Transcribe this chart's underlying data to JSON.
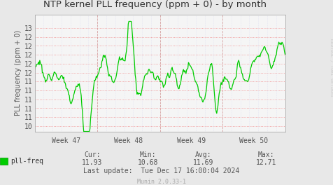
{
  "title": "NTP kernel PLL frequency (ppm + 0) - by month",
  "ylabel": "PLL frequency (ppm + 0)",
  "watermark": "RRDTOOL / TOBI OETIKER",
  "munin_version": "Munin 2.0.33-1",
  "legend_label": "pll-freq",
  "cur": "11.93",
  "min_val": "10.68",
  "avg": "11.69",
  "max_val": "12.71",
  "last_update": "Tue Dec 17 16:00:04 2024",
  "bg_color": "#e8e8e8",
  "plot_bg_color": "#f5f5f5",
  "line_color": "#00cc00",
  "title_color": "#333333",
  "label_color": "#555555",
  "watermark_color": "#cccccc",
  "week_labels": [
    "Week 47",
    "Week 48",
    "Week 49",
    "Week 50"
  ],
  "ylim_low": 10.68,
  "ylim_high": 13.3,
  "xlim_low": 0,
  "xlim_high": 28
}
